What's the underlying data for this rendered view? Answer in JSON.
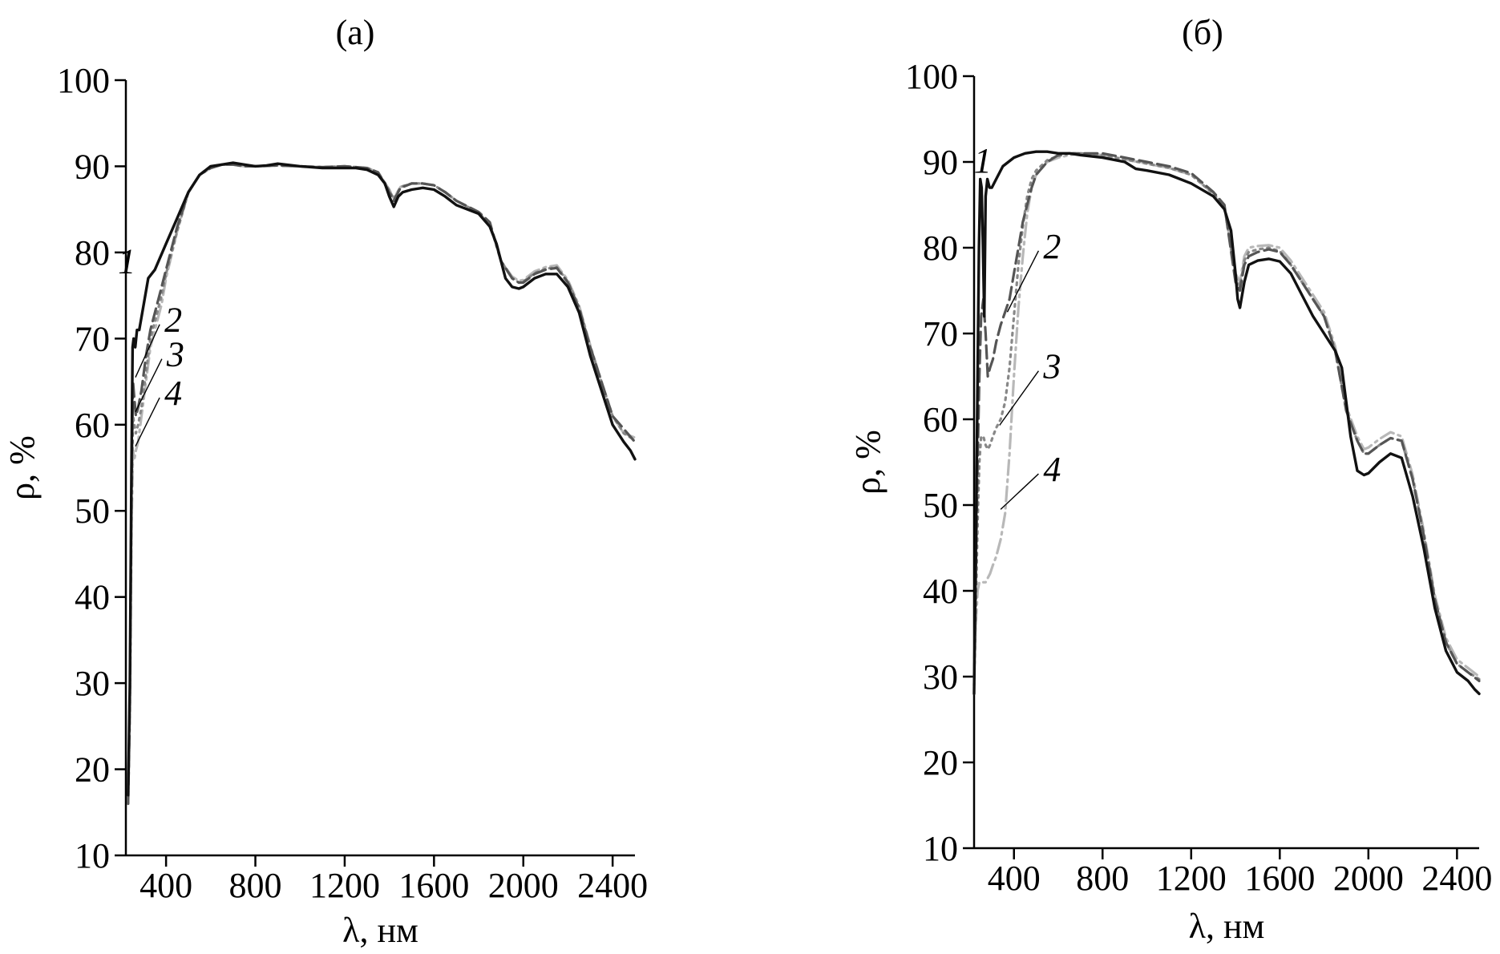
{
  "chart_data": [
    {
      "type": "line",
      "title": "(а)",
      "xlabel": "λ, нм",
      "ylabel": "ρ, %",
      "xlim": [
        220,
        2500
      ],
      "ylim": [
        10,
        100
      ],
      "xticks": [
        400,
        800,
        1200,
        1600,
        2000,
        2400
      ],
      "yticks": [
        10,
        20,
        30,
        40,
        50,
        60,
        70,
        80,
        90,
        100
      ],
      "grid": false,
      "legend": "none",
      "series": [
        {
          "name": "1",
          "color": "#111111",
          "dash": "none",
          "label_at": [
            300,
            79
          ],
          "label_anchor": [
            320,
            79
          ],
          "x": [
            230,
            238,
            245,
            250,
            255,
            262,
            270,
            280,
            300,
            320,
            350,
            400,
            450,
            500,
            550,
            600,
            650,
            700,
            750,
            800,
            850,
            900,
            1000,
            1100,
            1200,
            1250,
            1300,
            1350,
            1380,
            1400,
            1420,
            1440,
            1460,
            1500,
            1550,
            1600,
            1650,
            1700,
            1750,
            1800,
            1850,
            1880,
            1900,
            1920,
            1950,
            1980,
            2000,
            2050,
            2100,
            2150,
            2200,
            2250,
            2300,
            2350,
            2400,
            2450,
            2480,
            2500
          ],
          "y": [
            17,
            30,
            55,
            69,
            70,
            69,
            71,
            71,
            74,
            77,
            78,
            81,
            84,
            87,
            89,
            90,
            90.2,
            90.4,
            90.2,
            90,
            90.1,
            90.3,
            90,
            89.8,
            89.8,
            89.8,
            89.6,
            89,
            88,
            86.5,
            85.3,
            86.5,
            87,
            87.3,
            87.5,
            87.3,
            86.5,
            85.5,
            85,
            84.5,
            83,
            81,
            79,
            77,
            76,
            75.8,
            76,
            77,
            77.5,
            77.5,
            76,
            73,
            68,
            64,
            60,
            58,
            57,
            56
          ]
        },
        {
          "name": "2",
          "color": "#555555",
          "dash": "16,7",
          "label_at": [
            400,
            72.2
          ],
          "label_anchor": [
            263,
            65.5
          ],
          "x": [
            230,
            238,
            245,
            252,
            258,
            265,
            275,
            290,
            310,
            330,
            350,
            380,
            400,
            450,
            500,
            550,
            600,
            650,
            700,
            750,
            800,
            900,
            1000,
            1100,
            1200,
            1300,
            1350,
            1400,
            1420,
            1450,
            1500,
            1550,
            1600,
            1650,
            1700,
            1800,
            1850,
            1900,
            1950,
            1980,
            2000,
            2050,
            2100,
            2150,
            2200,
            2250,
            2300,
            2350,
            2400,
            2450,
            2500
          ],
          "y": [
            16,
            28,
            52,
            65,
            63,
            61,
            62,
            64,
            68,
            71,
            73,
            76,
            78,
            83,
            87,
            89,
            89.8,
            90.2,
            90.2,
            90,
            90,
            90.1,
            90,
            89.9,
            90,
            89.8,
            89.3,
            87,
            86,
            87.5,
            88,
            88,
            87.8,
            87,
            86,
            84.7,
            83.5,
            79,
            77,
            76.5,
            76.5,
            77.5,
            78,
            78.2,
            76.5,
            73.5,
            69,
            65,
            61,
            59.5,
            58
          ]
        },
        {
          "name": "3",
          "color": "#888888",
          "dash": "3,6",
          "label_at": [
            410,
            68.2
          ],
          "label_anchor": [
            263,
            61.5
          ],
          "x": [
            230,
            238,
            245,
            252,
            258,
            265,
            275,
            290,
            310,
            330,
            350,
            380,
            400,
            450,
            500,
            550,
            600,
            650,
            700,
            750,
            800,
            900,
            1000,
            1100,
            1200,
            1300,
            1350,
            1400,
            1420,
            1450,
            1500,
            1550,
            1600,
            1650,
            1700,
            1800,
            1850,
            1900,
            1950,
            1980,
            2000,
            2050,
            2100,
            2150,
            2200,
            2250,
            2300,
            2350,
            2400,
            2450,
            2500
          ],
          "y": [
            16,
            27,
            50,
            61,
            60,
            59,
            60,
            62,
            66,
            70,
            72,
            75,
            77.5,
            82.5,
            87,
            89,
            89.8,
            90.2,
            90.2,
            90,
            90,
            90.1,
            90,
            89.9,
            90,
            89.8,
            89.3,
            87.2,
            86.2,
            87.6,
            88,
            88,
            87.8,
            87,
            86,
            84.6,
            83.3,
            79,
            77,
            76.5,
            76.6,
            77.6,
            78.1,
            78.3,
            76.6,
            73.6,
            69,
            65,
            61,
            59,
            58.2
          ]
        },
        {
          "name": "4",
          "color": "#b8b8b8",
          "dash": "18,6,3,6",
          "label_at": [
            400,
            63.7
          ],
          "label_anchor": [
            263,
            57.5
          ],
          "x": [
            230,
            238,
            245,
            252,
            258,
            265,
            275,
            290,
            310,
            330,
            350,
            380,
            400,
            450,
            500,
            550,
            600,
            650,
            700,
            750,
            800,
            900,
            1000,
            1100,
            1200,
            1300,
            1350,
            1400,
            1420,
            1450,
            1500,
            1550,
            1600,
            1650,
            1700,
            1800,
            1850,
            1900,
            1950,
            1980,
            2000,
            2050,
            2100,
            2150,
            2200,
            2250,
            2300,
            2350,
            2400,
            2450,
            2500
          ],
          "y": [
            16,
            26,
            48,
            57,
            56,
            57,
            58,
            61,
            65,
            69,
            71,
            74,
            77,
            82.5,
            87,
            89,
            89.8,
            90.2,
            90.2,
            90,
            90,
            90.1,
            90,
            89.9,
            90,
            89.8,
            89.3,
            87.3,
            86.3,
            87.6,
            88,
            88,
            87.8,
            87,
            86,
            84.6,
            83.3,
            79,
            77.2,
            76.7,
            76.8,
            77.8,
            78.3,
            78.5,
            76.8,
            73.8,
            69.2,
            65,
            61,
            59,
            58.5
          ]
        }
      ]
    },
    {
      "type": "line",
      "title": "(б)",
      "xlabel": "λ, нм",
      "ylabel": "ρ, %",
      "xlim": [
        220,
        2500
      ],
      "ylim": [
        10,
        100
      ],
      "xticks": [
        400,
        800,
        1200,
        1600,
        2000,
        2400
      ],
      "yticks": [
        10,
        20,
        30,
        40,
        50,
        60,
        70,
        80,
        90,
        100
      ],
      "grid": false,
      "legend": "none",
      "series": [
        {
          "name": "1",
          "color": "#111111",
          "dash": "none",
          "label_at": [
            335,
            90.2
          ],
          "label_anchor": [
            340,
            90.2
          ],
          "x": [
            220,
            228,
            236,
            242,
            248,
            254,
            260,
            266,
            272,
            280,
            290,
            300,
            320,
            350,
            400,
            450,
            500,
            550,
            600,
            650,
            700,
            800,
            900,
            950,
            1000,
            1100,
            1200,
            1300,
            1350,
            1380,
            1400,
            1410,
            1420,
            1440,
            1460,
            1500,
            1550,
            1600,
            1650,
            1700,
            1750,
            1800,
            1850,
            1880,
            1900,
            1920,
            1950,
            1980,
            2000,
            2050,
            2100,
            2150,
            2200,
            2250,
            2300,
            2350,
            2400,
            2450,
            2480,
            2500
          ],
          "y": [
            28,
            45,
            65,
            80,
            88,
            87,
            80,
            72,
            86,
            88,
            87,
            87,
            88,
            89.5,
            90.5,
            91,
            91.2,
            91.2,
            91,
            91,
            90.8,
            90.5,
            90,
            89.2,
            89,
            88.5,
            87.5,
            86,
            84.5,
            82,
            77,
            74,
            73,
            76,
            78,
            78.5,
            78.7,
            78.4,
            77,
            74.5,
            72,
            70,
            68,
            66,
            62,
            58,
            54,
            53.5,
            53.7,
            55,
            56,
            55.5,
            51,
            45,
            38,
            33,
            30.5,
            29.5,
            28.5,
            28
          ]
        },
        {
          "name": "2",
          "color": "#555555",
          "dash": "16,7",
          "label_at": [
            540,
            80.2
          ],
          "label_anchor": [
            370,
            72.5
          ],
          "x": [
            220,
            228,
            236,
            244,
            252,
            262,
            272,
            282,
            292,
            305,
            320,
            340,
            360,
            380,
            400,
            420,
            440,
            460,
            480,
            500,
            550,
            600,
            650,
            700,
            800,
            900,
            1000,
            1100,
            1200,
            1300,
            1350,
            1400,
            1420,
            1440,
            1460,
            1500,
            1550,
            1600,
            1650,
            1700,
            1800,
            1850,
            1900,
            1950,
            1980,
            2000,
            2050,
            2100,
            2150,
            2200,
            2250,
            2300,
            2350,
            2400,
            2450,
            2500
          ],
          "y": [
            30,
            42,
            55,
            65,
            72,
            74,
            70,
            65,
            66,
            67,
            69,
            71,
            72.5,
            74,
            77,
            80,
            83,
            85,
            87,
            88.5,
            90,
            90.8,
            91,
            91,
            91,
            90.5,
            90,
            89.5,
            88.7,
            86.5,
            85,
            76,
            75,
            78,
            79,
            79.5,
            79.8,
            79.5,
            78,
            76,
            72,
            68,
            61,
            57.5,
            56,
            56,
            57,
            57.8,
            57.5,
            53,
            46.5,
            39,
            34,
            31.5,
            30.5,
            29.5
          ]
        },
        {
          "name": "3",
          "color": "#888888",
          "dash": "3,6",
          "label_at": [
            540,
            66.2
          ],
          "label_anchor": [
            335,
            59.3
          ],
          "x": [
            220,
            228,
            236,
            244,
            252,
            262,
            272,
            282,
            292,
            305,
            320,
            340,
            360,
            380,
            400,
            420,
            440,
            460,
            480,
            500,
            550,
            600,
            650,
            700,
            800,
            900,
            1000,
            1100,
            1200,
            1300,
            1350,
            1400,
            1420,
            1440,
            1460,
            1500,
            1550,
            1600,
            1650,
            1700,
            1800,
            1850,
            1900,
            1950,
            1980,
            2000,
            2050,
            2100,
            2150,
            2200,
            2250,
            2300,
            2350,
            2400,
            2450,
            2500
          ],
          "y": [
            29,
            38,
            48,
            55,
            58,
            58,
            57,
            56.5,
            57,
            58,
            59,
            60,
            62,
            66,
            72,
            78,
            82.5,
            86,
            88,
            89,
            90.2,
            90.7,
            91,
            91,
            90.8,
            90.3,
            89.8,
            89.3,
            88.5,
            86.3,
            84.8,
            76.5,
            75.5,
            78.5,
            79.5,
            79.8,
            80,
            79.6,
            78,
            76,
            72,
            68,
            61,
            57.5,
            56,
            56,
            57,
            57.8,
            57.5,
            53,
            46.5,
            39,
            34,
            31.5,
            30.5,
            29.7
          ]
        },
        {
          "name": "4",
          "color": "#b8b8b8",
          "dash": "18,6,3,6",
          "label_at": [
            540,
            54.2
          ],
          "label_anchor": [
            340,
            49.5
          ],
          "x": [
            220,
            228,
            236,
            244,
            252,
            262,
            272,
            282,
            292,
            305,
            320,
            340,
            360,
            380,
            400,
            420,
            440,
            460,
            480,
            500,
            550,
            600,
            650,
            700,
            800,
            900,
            1000,
            1100,
            1200,
            1300,
            1350,
            1400,
            1420,
            1440,
            1460,
            1500,
            1550,
            1600,
            1650,
            1700,
            1800,
            1850,
            1900,
            1950,
            1980,
            2000,
            2050,
            2100,
            2150,
            2200,
            2250,
            2300,
            2350,
            2400,
            2450,
            2500
          ],
          "y": [
            30,
            36,
            40,
            41,
            41,
            41,
            41,
            41.5,
            42,
            43,
            44,
            46,
            49,
            56,
            65,
            73,
            79,
            84,
            87,
            88.5,
            90,
            90.5,
            90.8,
            91,
            90.8,
            90.3,
            89.8,
            89.3,
            88.5,
            86.3,
            84.8,
            77,
            76,
            79,
            80,
            80.2,
            80.3,
            80,
            78.5,
            76.5,
            72.5,
            68.5,
            61.5,
            58,
            56.5,
            56.7,
            57.7,
            58.5,
            58,
            53.5,
            47,
            39.5,
            34.5,
            32,
            31,
            30
          ]
        }
      ]
    }
  ]
}
